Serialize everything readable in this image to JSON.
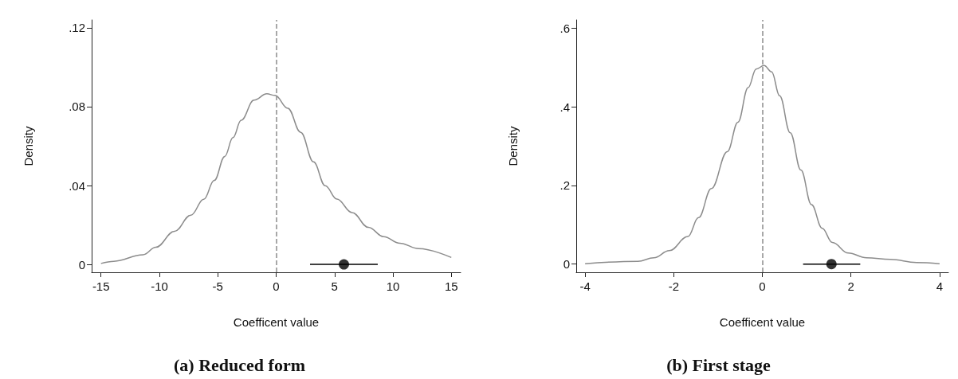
{
  "chart_data": [
    {
      "type": "line",
      "title": "(a) Reduced form",
      "xlabel": "Coefficent value",
      "ylabel": "Density",
      "xlim": [
        -15.8,
        15.8
      ],
      "xticks": [
        -15,
        -10,
        -5,
        0,
        5,
        10,
        15
      ],
      "ylim": [
        -0.004,
        0.124
      ],
      "yticks": [
        0,
        {
          "value": 0.04,
          "label": ".04"
        },
        {
          "value": 0.08,
          "label": ".08"
        },
        {
          "value": 0.12,
          "label": ".12"
        }
      ],
      "grid": false,
      "series": [
        {
          "color": "#8c8c8c",
          "x": [
            -15,
            -13.9,
            -11.4,
            -10.3,
            -8.7,
            -7.3,
            -6.2,
            -5.3,
            -4.4,
            -3.7,
            -3.0,
            -1.9,
            -0.8,
            -0.1,
            1.0,
            2.1,
            3.2,
            4.2,
            5.2,
            6.5,
            7.9,
            9.2,
            10.6,
            12.2,
            15
          ],
          "values": [
            0.0005,
            0.0016,
            0.0049,
            0.0087,
            0.0168,
            0.025,
            0.033,
            0.0426,
            0.0548,
            0.0643,
            0.0731,
            0.0833,
            0.0865,
            0.0857,
            0.0792,
            0.067,
            0.052,
            0.0399,
            0.0331,
            0.0263,
            0.0188,
            0.0141,
            0.0107,
            0.008,
            0.0035
          ]
        },
        {
          "type": "scatter",
          "color": "#000000",
          "marker": "circle",
          "x": [
            5.8
          ],
          "values": [
            0
          ],
          "xerrors": [
            [
              2.9,
              8.7
            ]
          ]
        }
      ],
      "ref_lines": [
        {
          "axis": "x",
          "value": 0,
          "color": "#8c8c8c",
          "line_style": "dashed"
        }
      ]
    },
    {
      "type": "line",
      "title": "(b) First stage",
      "xlabel": "Coefficent value",
      "ylabel": "Density",
      "xlim": [
        -4.2,
        4.2
      ],
      "xticks": [
        -4,
        -2,
        0,
        2,
        4
      ],
      "ylim": [
        -0.021,
        0.621
      ],
      "yticks": [
        0,
        {
          "value": 0.2,
          "label": ".2"
        },
        {
          "value": 0.4,
          "label": ".4"
        },
        {
          "value": 0.6,
          "label": ".6"
        }
      ],
      "grid": false,
      "series": [
        {
          "color": "#8c8c8c",
          "x": [
            -4,
            -2.81,
            -2.45,
            -2.1,
            -1.68,
            -1.44,
            -1.15,
            -0.79,
            -0.55,
            -0.32,
            -0.14,
            0.04,
            0.21,
            0.39,
            0.63,
            0.87,
            1.11,
            1.35,
            1.58,
            1.94,
            2.35,
            2.89,
            3.48,
            4
          ],
          "values": [
            0.001,
            0.007,
            0.016,
            0.034,
            0.07,
            0.118,
            0.192,
            0.286,
            0.361,
            0.449,
            0.496,
            0.505,
            0.489,
            0.428,
            0.334,
            0.239,
            0.151,
            0.091,
            0.055,
            0.028,
            0.016,
            0.012,
            0.004,
            0.001
          ]
        },
        {
          "type": "scatter",
          "color": "#000000",
          "marker": "circle",
          "x": [
            1.56
          ],
          "values": [
            0
          ],
          "xerrors": [
            [
              0.92,
              2.21
            ]
          ]
        }
      ],
      "ref_lines": [
        {
          "axis": "x",
          "value": 0,
          "color": "#8c8c8c",
          "line_style": "dashed"
        }
      ]
    }
  ]
}
